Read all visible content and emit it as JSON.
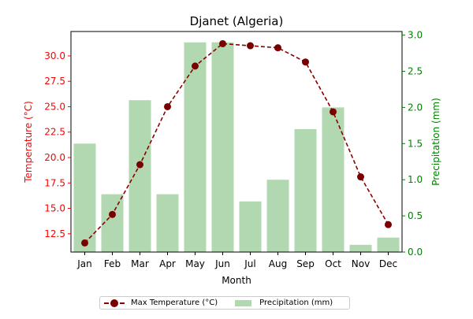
{
  "chart_data": {
    "type": "bar+line",
    "title": "Djanet (Algeria)",
    "xlabel": "Month",
    "categories": [
      "Jan",
      "Feb",
      "Mar",
      "Apr",
      "May",
      "Jun",
      "Jul",
      "Aug",
      "Sep",
      "Oct",
      "Nov",
      "Dec"
    ],
    "left_axis": {
      "label": "Temperature (°C)",
      "color": "#ff0000",
      "range": [
        10.7,
        32.4
      ],
      "ticks": [
        "12.5",
        "15.0",
        "17.5",
        "20.0",
        "22.5",
        "25.0",
        "27.5",
        "30.0"
      ]
    },
    "right_axis": {
      "label": "Precipitation (mm)",
      "color": "#008000",
      "range": [
        0,
        3.05
      ],
      "ticks": [
        "0.0",
        "0.5",
        "1.0",
        "1.5",
        "2.0",
        "2.5",
        "3.0"
      ]
    },
    "series": [
      {
        "name": "Max Temperature (°C)",
        "type": "line",
        "axis": "left",
        "color": "#8b0000",
        "marker_color": "#7a0000",
        "values": [
          11.6,
          14.4,
          19.3,
          25.0,
          29.0,
          31.2,
          31.0,
          30.8,
          29.4,
          24.5,
          18.1,
          13.4
        ]
      },
      {
        "name": "Precipitation (mm)",
        "type": "bar",
        "axis": "right",
        "color": "#b1d8b1",
        "values": [
          1.5,
          0.8,
          2.1,
          0.8,
          2.9,
          2.9,
          0.7,
          1.0,
          1.7,
          2.0,
          0.1,
          0.2
        ]
      }
    ],
    "legend": {
      "position": "bottom-center"
    },
    "grid": false
  }
}
